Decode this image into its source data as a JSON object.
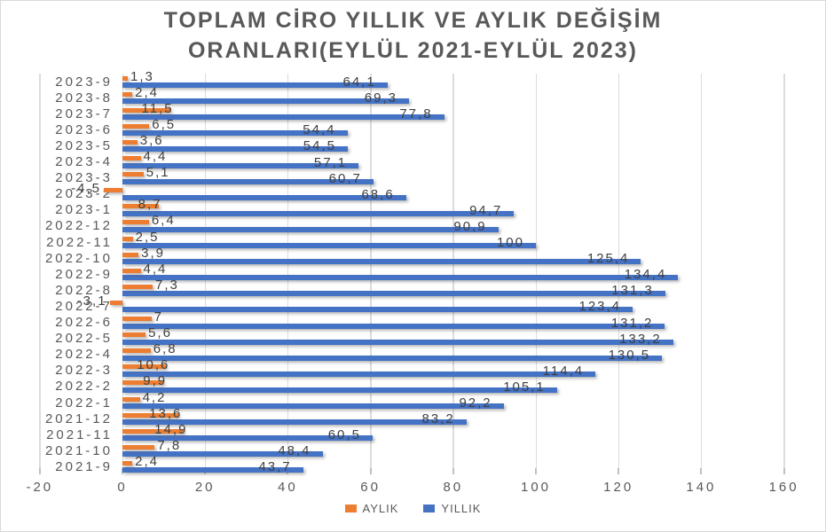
{
  "window": {
    "background": "#FFFFFF",
    "border_color": "#D9D9D9"
  },
  "chart_data": {
    "type": "bar",
    "orientation": "horizontal",
    "title": "TOPLAM CİRO YILLIK VE AYLIK DEĞİŞİM ORANLARI(EYLÜL 2021-EYLÜL 2023)",
    "title_lines": [
      "TOPLAM CİRO YILLIK VE AYLIK DEĞİŞİM",
      "ORANLARI(EYLÜL 2021-EYLÜL 2023)"
    ],
    "categories": [
      "2023-9",
      "2023-8",
      "2023-7",
      "2023-6",
      "2023-5",
      "2023-4",
      "2023-3",
      "2023-2",
      "2023-1",
      "2022-12",
      "2022-11",
      "2022-10",
      "2022-9",
      "2022-8",
      "2022-7",
      "2022-6",
      "2022-5",
      "2022-4",
      "2022-3",
      "2022-2",
      "2022-1",
      "2021-12",
      "2021-11",
      "2021-10",
      "2021-9"
    ],
    "series": [
      {
        "name": "AYLIK",
        "color": "#ED7D31",
        "values": [
          1.3,
          2.4,
          11.5,
          6.5,
          3.6,
          4.4,
          5.1,
          -4.5,
          8.7,
          6.4,
          2.5,
          3.9,
          4.4,
          7.3,
          -3.1,
          7,
          5.6,
          6.8,
          10.6,
          9.9,
          4.2,
          13.6,
          14.9,
          7.8,
          2.4
        ]
      },
      {
        "name": "YILLIK",
        "color": "#4472C4",
        "values": [
          64.1,
          69.3,
          77.8,
          54.4,
          54.5,
          57.1,
          60.7,
          68.6,
          94.7,
          90.9,
          100,
          125.4,
          134.4,
          131.3,
          123.4,
          131.2,
          133.2,
          130.5,
          114.4,
          105.1,
          92.2,
          83.2,
          60.5,
          48.4,
          43.7
        ]
      }
    ],
    "xlim": [
      -20,
      160
    ],
    "x_ticks": [
      -20,
      0,
      20,
      40,
      60,
      80,
      100,
      120,
      140,
      160
    ],
    "decimal_separator": ",",
    "grid": true,
    "legend_position": "bottom",
    "styles": {
      "grid_color": "#DCDCDC",
      "tick_color": "#BFBFBF",
      "axis_text_color": "#595959",
      "title_color": "#595959",
      "data_label_color": "#3F3F3F"
    }
  }
}
